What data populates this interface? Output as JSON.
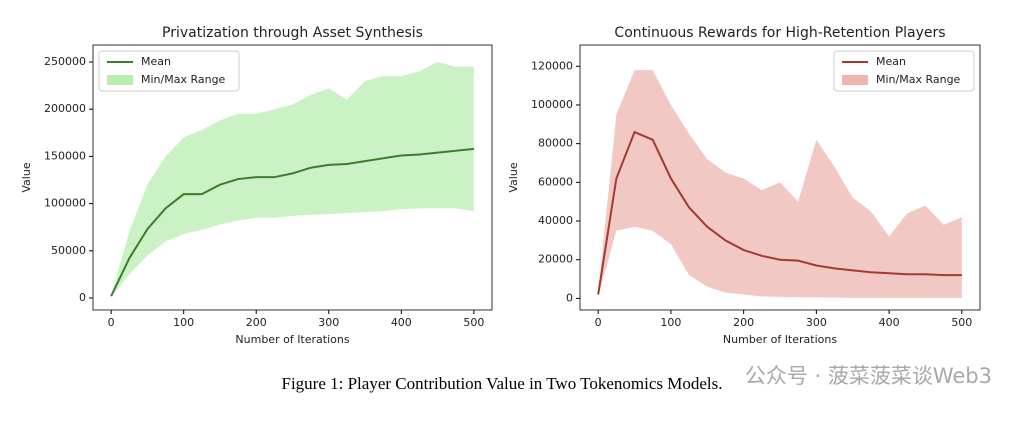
{
  "chart_data": [
    {
      "type": "line",
      "title": "Privatization through Asset Synthesis",
      "xlabel": "Number of Iterations",
      "ylabel": "Value",
      "x": [
        0,
        25,
        50,
        75,
        100,
        125,
        150,
        175,
        200,
        225,
        250,
        275,
        300,
        325,
        350,
        375,
        400,
        425,
        450,
        475,
        500
      ],
      "series": [
        {
          "name": "Mean",
          "color": "#3a7d2c",
          "values": [
            2000,
            42000,
            73000,
            95000,
            110000,
            110000,
            120000,
            126000,
            128000,
            128000,
            132000,
            138000,
            141000,
            142000,
            145000,
            148000,
            151000,
            152000,
            154000,
            156000,
            158000
          ]
        },
        {
          "name": "Min/Max Range",
          "color": "#b9eeb0",
          "low": [
            1000,
            25000,
            45000,
            60000,
            68000,
            72000,
            78000,
            82000,
            85000,
            85000,
            87000,
            88000,
            89000,
            90000,
            91000,
            92000,
            94000,
            95000,
            95000,
            95000,
            92000
          ],
          "high": [
            3000,
            70000,
            120000,
            150000,
            170000,
            178000,
            188000,
            195000,
            195000,
            200000,
            205000,
            215000,
            222000,
            210000,
            230000,
            235000,
            235000,
            240000,
            250000,
            245000,
            245000
          ]
        }
      ],
      "xlim": [
        -25,
        525
      ],
      "xticks": [
        0,
        100,
        200,
        300,
        400,
        500
      ],
      "ylim": [
        -12700,
        268000
      ],
      "yticks": [
        0,
        50000,
        100000,
        150000,
        200000,
        250000
      ],
      "legend": "upper left"
    },
    {
      "type": "line",
      "title": "Continuous Rewards for High-Retention Players",
      "xlabel": "Number of Iterations",
      "ylabel": "Value",
      "x": [
        0,
        25,
        50,
        75,
        100,
        125,
        150,
        175,
        200,
        225,
        250,
        275,
        300,
        325,
        350,
        375,
        400,
        425,
        450,
        475,
        500
      ],
      "series": [
        {
          "name": "Mean",
          "color": "#a33a32",
          "values": [
            2000,
            62000,
            86000,
            82000,
            62000,
            47000,
            37000,
            30000,
            25000,
            22000,
            20000,
            19500,
            17000,
            15500,
            14500,
            13500,
            13000,
            12500,
            12500,
            12000,
            12000
          ]
        },
        {
          "name": "Min/Max Range",
          "color": "#eeb6b2",
          "low": [
            1000,
            35000,
            37000,
            35000,
            28000,
            12000,
            6000,
            3000,
            2000,
            1000,
            800,
            600,
            500,
            400,
            300,
            300,
            300,
            300,
            300,
            300,
            300
          ],
          "high": [
            3000,
            95000,
            118000,
            118000,
            100000,
            85000,
            72000,
            65000,
            62000,
            56000,
            60000,
            50000,
            82000,
            68000,
            52000,
            45000,
            32000,
            44000,
            48000,
            38000,
            42000
          ]
        }
      ],
      "xlim": [
        -25,
        525
      ],
      "xticks": [
        0,
        100,
        200,
        300,
        400,
        500
      ],
      "ylim": [
        -6000,
        131000
      ],
      "yticks": [
        0,
        20000,
        40000,
        60000,
        80000,
        100000,
        120000
      ],
      "legend": "upper right"
    }
  ],
  "caption": "Figure 1: Player Contribution Value in Two Tokenomics Models.",
  "watermark": "公众号 · 菠菜菠菜谈Web3"
}
